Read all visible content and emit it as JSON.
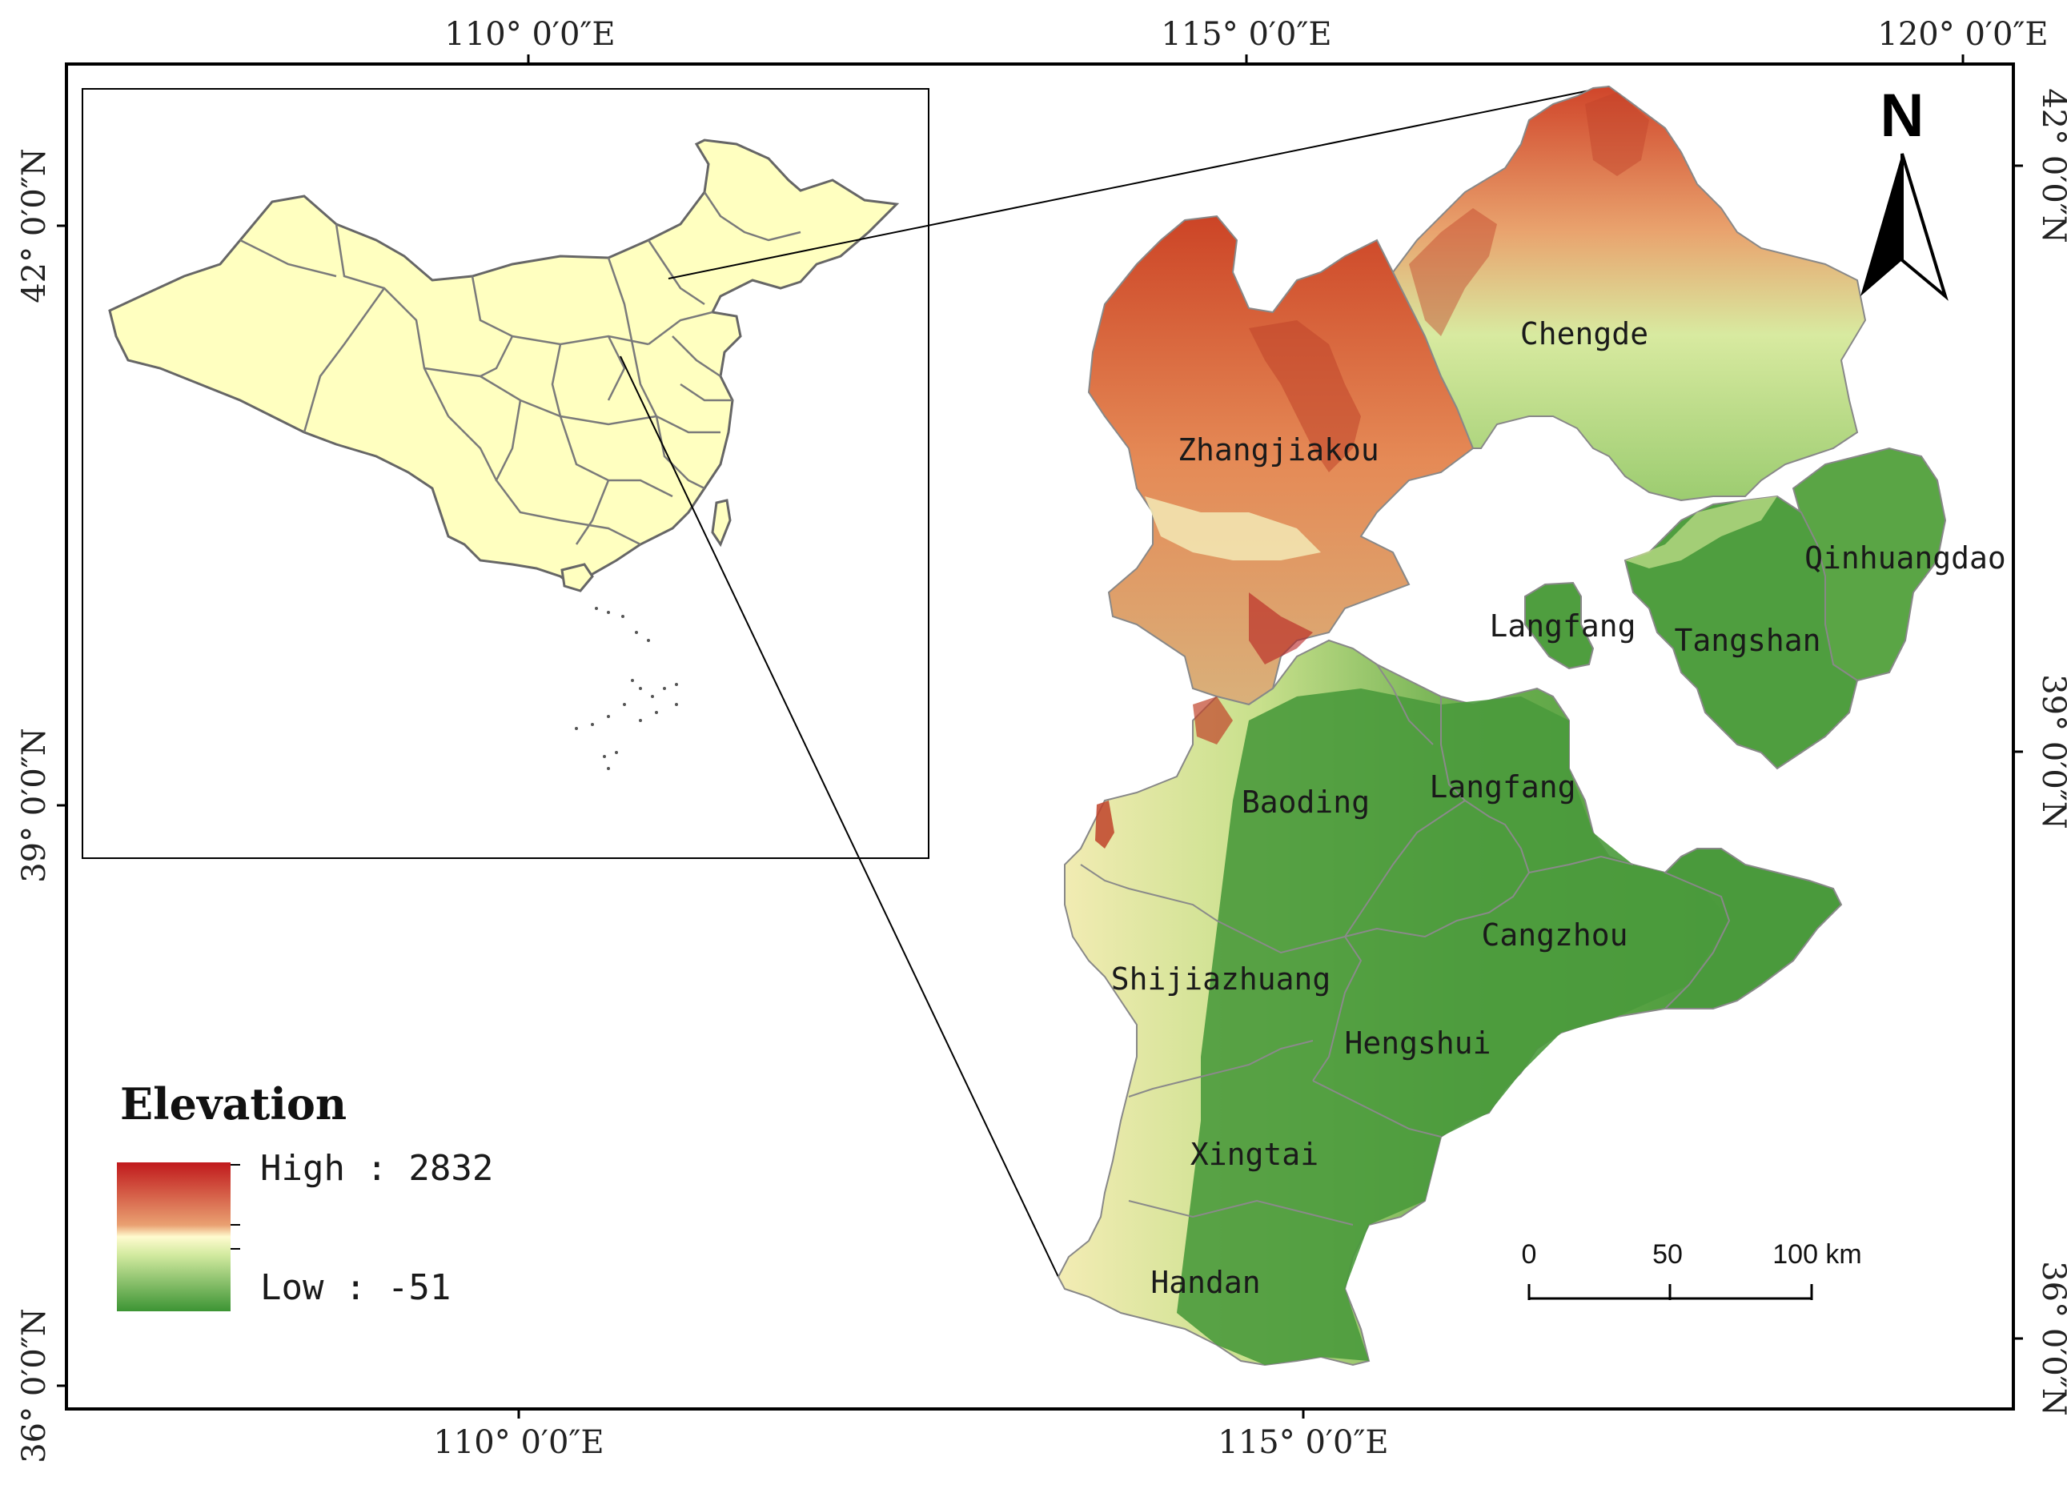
{
  "map": {
    "top_longitude_labels": [
      "110° 0′0″E",
      "115° 0′0″E",
      "120° 0′0″E"
    ],
    "bottom_longitude_labels": [
      "110° 0′0″E",
      "115° 0′0″E"
    ],
    "left_latitude_labels": [
      "42° 0′0″N",
      "39° 0′0″N",
      "36° 0′0″N"
    ],
    "right_latitude_labels": [
      "42° 0′0″N",
      "39° 0′0″N",
      "36° 0′0″N"
    ],
    "north_label": "N",
    "cities": {
      "zhangjiakou": "Zhangjiakou",
      "chengde": "Chengde",
      "qinhuangdao": "Qinhuangdao",
      "langfang_north": "Langfang",
      "tangshan": "Tangshan",
      "baoding": "Baoding",
      "langfang_south": "Langfang",
      "cangzhou": "Cangzhou",
      "shijiazhuang": "Shijiazhuang",
      "hengshui": "Hengshui",
      "xingtai": "Xingtai",
      "handan": "Handan"
    }
  },
  "legend": {
    "title": "Elevation",
    "high_label": "High : 2832",
    "low_label": "Low : -51",
    "high_value": 2832,
    "low_value": -51,
    "colors": {
      "high": "#c0191c",
      "mid": "#fffbcf",
      "low": "#3c9434"
    }
  },
  "scale_bar": {
    "labels": [
      "0",
      "50",
      "100 km"
    ]
  },
  "colors": {
    "china_fill": "#ffffc0",
    "green": "#4a9a3c",
    "red": "#cf4a2a"
  }
}
